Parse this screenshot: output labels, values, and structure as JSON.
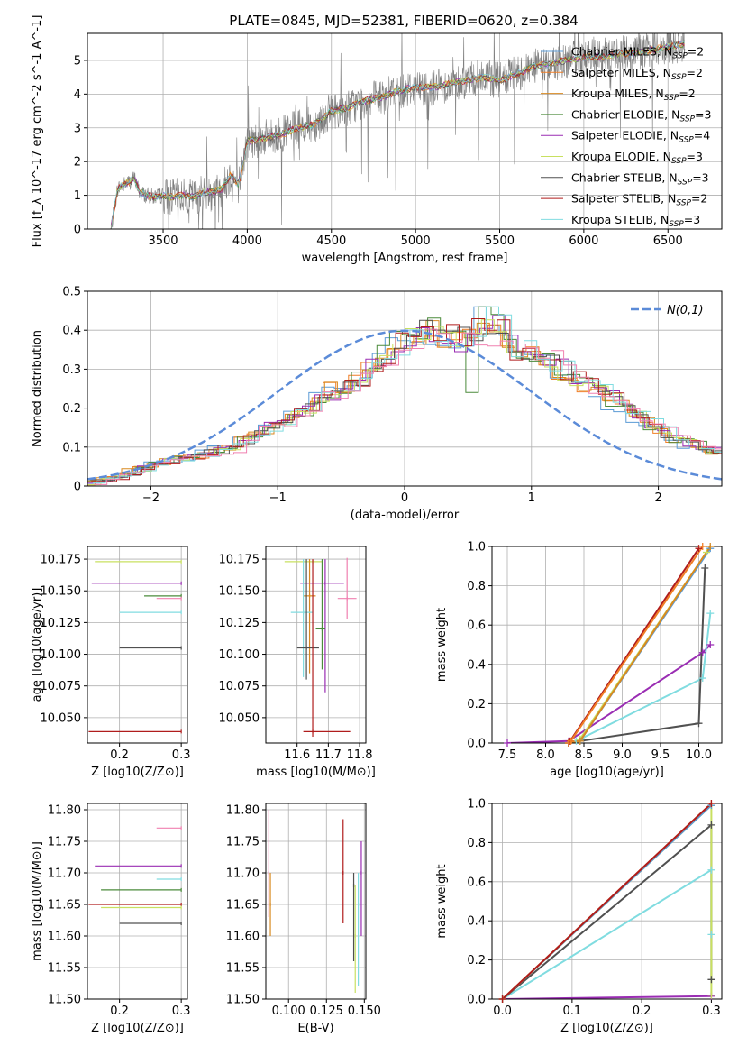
{
  "title": "PLATE=0845, MJD=52381, FIBERID=0620, z=0.384",
  "colors": {
    "Chabrier MILES": "#5b9bd5",
    "Salpeter MILES": "#f07e26",
    "Kroupa MILES": "#d98a20",
    "Chabrier ELODIE": "#4b8b3b",
    "Salpeter ELODIE": "#9a2db3",
    "Kroupa ELODIE": "#c8e060",
    "Chabrier STELIB": "#505050",
    "Salpeter STELIB": "#b01c1c",
    "Kroupa STELIB": "#80dce0",
    "Observed": "#808080",
    "Normal": "#5b8bd8",
    "Pink": "#f080b0"
  },
  "chart_data": [
    {
      "type": "line",
      "id": "spectrum",
      "xlabel": "wavelength [Angstrom, rest frame]",
      "ylabel": "Flux [f_λ 10^-17 erg cm^-2 s^-1 A^-1]",
      "xlim": [
        3050,
        6820
      ],
      "ylim": [
        0,
        5.8
      ],
      "xticks": [
        3500,
        4000,
        4500,
        5000,
        5500,
        6000,
        6500
      ],
      "yticks": [
        0,
        1,
        2,
        3,
        4,
        5
      ],
      "legend": "top-right",
      "legend_entries": [
        {
          "label": "Chabrier MILES, N_SSP=2"
        },
        {
          "label": "Salpeter MILES, N_SSP=2"
        },
        {
          "label": "Kroupa MILES, N_SSP=2"
        },
        {
          "label": "Chabrier ELODIE, N_SSP=3"
        },
        {
          "label": "Salpeter ELODIE, N_SSP=4"
        },
        {
          "label": "Kroupa ELODIE, N_SSP=3"
        },
        {
          "label": "Chabrier STELIB, N_SSP=3"
        },
        {
          "label": "Salpeter STELIB, N_SSP=2"
        },
        {
          "label": "Kroupa STELIB, N_SSP=3"
        }
      ],
      "model_points": {
        "x": [
          3190,
          3230,
          3260,
          3300,
          3330,
          3360,
          3400,
          3450,
          3500,
          3560,
          3620,
          3680,
          3750,
          3800,
          3850,
          3900,
          3950,
          4000,
          4100,
          4200,
          4300,
          4400,
          4500,
          4600,
          4700,
          4800,
          4900,
          5000,
          5100,
          5200,
          5300,
          5400,
          5500,
          5600,
          5700,
          5800,
          5900,
          6000,
          6100,
          6200,
          6300,
          6400,
          6500,
          6600
        ],
        "y": [
          0.0,
          1.2,
          1.3,
          1.4,
          1.5,
          1.1,
          1.0,
          0.95,
          1.0,
          0.95,
          1.0,
          0.95,
          1.1,
          1.1,
          1.2,
          1.6,
          1.3,
          2.6,
          2.7,
          2.8,
          3.0,
          3.1,
          3.5,
          3.6,
          3.8,
          3.9,
          4.1,
          4.2,
          4.2,
          4.3,
          4.4,
          4.5,
          4.4,
          4.6,
          4.8,
          4.9,
          5.0,
          5.1,
          5.1,
          5.2,
          5.2,
          5.3,
          5.4,
          5.5
        ]
      }
    },
    {
      "type": "bar",
      "id": "residuals",
      "xlabel": "(data-model)/error",
      "ylabel": "Normed distribution",
      "xlim": [
        -2.5,
        2.5
      ],
      "ylim": [
        0,
        0.5
      ],
      "xticks": [
        -2,
        -1,
        0,
        1,
        2
      ],
      "yticks": [
        0.0,
        0.1,
        0.2,
        0.3,
        0.4,
        0.5
      ],
      "legend": "top-right",
      "legend_label": "N(0,1)",
      "bin_edges_start": -2.5,
      "bin_width": 0.1,
      "base_hist": [
        0.01,
        0.018,
        0.025,
        0.035,
        0.045,
        0.055,
        0.06,
        0.07,
        0.075,
        0.085,
        0.09,
        0.1,
        0.12,
        0.14,
        0.15,
        0.16,
        0.18,
        0.2,
        0.22,
        0.24,
        0.26,
        0.28,
        0.3,
        0.33,
        0.36,
        0.38,
        0.4,
        0.4,
        0.38,
        0.38,
        0.39,
        0.39,
        0.41,
        0.36,
        0.35,
        0.34,
        0.33,
        0.3,
        0.28,
        0.26,
        0.24,
        0.22,
        0.2,
        0.18,
        0.16,
        0.14,
        0.12,
        0.11,
        0.1,
        0.09
      ]
    },
    {
      "type": "scatter",
      "id": "age-vs-Z",
      "xlabel": "Z [log10(Z/Z⊙)]",
      "ylabel": "age [log10(age/yr)]",
      "xlim": [
        0.148,
        0.31
      ],
      "ylim": [
        10.03,
        10.185
      ],
      "xticks": [
        0.2,
        0.3
      ],
      "xtick_labels": [
        "0.2",
        "0.3"
      ],
      "yticks": [
        10.05,
        10.075,
        10.1,
        10.125,
        10.15,
        10.175
      ],
      "ytick_labels": [
        "10.050",
        "10.075",
        "10.100",
        "10.125",
        "10.150",
        "10.175"
      ]
    },
    {
      "type": "scatter",
      "id": "age-vs-mass",
      "xlabel": "mass [log10(M/M⊙)]",
      "ylabel": "",
      "xlim": [
        11.5,
        11.82
      ],
      "ylim": [
        10.03,
        10.185
      ],
      "xticks": [
        11.6,
        11.7,
        11.8
      ],
      "xtick_labels": [
        "11.6",
        "11.7",
        "11.8"
      ],
      "yticks": [
        10.05,
        10.075,
        10.1,
        10.125,
        10.15,
        10.175
      ],
      "ytick_labels": [
        "10.050",
        "10.075",
        "10.100",
        "10.125",
        "10.150",
        "10.175"
      ]
    },
    {
      "type": "line",
      "id": "mass-weight-vs-age",
      "xlabel": "age [log10(age/yr)]",
      "ylabel": "mass weight",
      "xlim": [
        7.3,
        10.3
      ],
      "ylim": [
        0,
        1
      ],
      "xticks": [
        7.5,
        8.0,
        8.5,
        9.0,
        9.5,
        10.0
      ],
      "xtick_labels": [
        "7.5",
        "8.0",
        "8.5",
        "9.0",
        "9.5",
        "10.0"
      ],
      "yticks": [
        0,
        0.2,
        0.4,
        0.6,
        0.8,
        1.0
      ],
      "ytick_labels": [
        "0.0",
        "0.2",
        "0.4",
        "0.6",
        "0.8",
        "1.0"
      ],
      "series": [
        {
          "color": "Salpeter ELODIE",
          "x": [
            7.5,
            8.3,
            10.05,
            10.15
          ],
          "y": [
            0.0,
            0.01,
            0.46,
            0.5
          ]
        },
        {
          "color": "Kroupa STELIB",
          "x": [
            8.3,
            8.4,
            10.05,
            10.15
          ],
          "y": [
            0.0,
            0.01,
            0.33,
            0.66
          ]
        },
        {
          "color": "Chabrier STELIB",
          "x": [
            8.3,
            8.45,
            10.0,
            10.08
          ],
          "y": [
            0.0,
            0.01,
            0.1,
            0.89
          ]
        },
        {
          "color": "Kroupa ELODIE",
          "x": [
            8.3,
            8.45,
            10.1
          ],
          "y": [
            0.0,
            0.02,
            0.97
          ]
        },
        {
          "color": "Chabrier MILES",
          "x": [
            8.3,
            8.45,
            10.15
          ],
          "y": [
            0.0,
            0.01,
            0.99
          ]
        },
        {
          "color": "Kroupa MILES",
          "x": [
            8.3,
            8.45,
            10.15
          ],
          "y": [
            0.0,
            0.01,
            1.0
          ]
        },
        {
          "color": "Salpeter STELIB",
          "x": [
            8.3,
            8.32,
            10.0
          ],
          "y": [
            0.0,
            0.01,
            0.99
          ]
        },
        {
          "color": "Salpeter MILES",
          "x": [
            8.3,
            8.33,
            10.05
          ],
          "y": [
            0.0,
            0.01,
            1.0
          ]
        }
      ]
    },
    {
      "type": "scatter",
      "id": "mass-vs-Z",
      "xlabel": "Z [log10(Z/Z⊙)]",
      "ylabel": "mass [log10(M/M⊙)]",
      "xlim": [
        0.148,
        0.31
      ],
      "ylim": [
        11.5,
        11.81
      ],
      "xticks": [
        0.2,
        0.3
      ],
      "xtick_labels": [
        "0.2",
        "0.3"
      ],
      "yticks": [
        11.5,
        11.55,
        11.6,
        11.65,
        11.7,
        11.75,
        11.8
      ],
      "ytick_labels": [
        "11.50",
        "11.55",
        "11.60",
        "11.65",
        "11.70",
        "11.75",
        "11.80"
      ]
    },
    {
      "type": "scatter",
      "id": "mass-vs-ebv",
      "xlabel": "E(B-V)",
      "ylabel": "",
      "xlim": [
        0.085,
        0.151
      ],
      "ylim": [
        11.5,
        11.81
      ],
      "xticks": [
        0.1,
        0.125,
        0.15
      ],
      "xtick_labels": [
        "0.100",
        "0.125",
        "0.150"
      ],
      "yticks": [
        11.5,
        11.55,
        11.6,
        11.65,
        11.7,
        11.75,
        11.8
      ],
      "ytick_labels": [
        "11.50",
        "11.55",
        "11.60",
        "11.65",
        "11.70",
        "11.75",
        "11.80"
      ]
    },
    {
      "type": "line",
      "id": "mass-weight-vs-Z",
      "xlabel": "Z [log10(Z/Z⊙)]",
      "ylabel": "mass weight",
      "xlim": [
        -0.015,
        0.315
      ],
      "ylim": [
        0,
        1
      ],
      "xticks": [
        0.0,
        0.1,
        0.2,
        0.3
      ],
      "xtick_labels": [
        "0.0",
        "0.1",
        "0.2",
        "0.3"
      ],
      "yticks": [
        0,
        0.2,
        0.4,
        0.6,
        0.8,
        1.0
      ],
      "ytick_labels": [
        "0.0",
        "0.2",
        "0.4",
        "0.6",
        "0.8",
        "1.0"
      ],
      "series": [
        {
          "color": "Salpeter ELODIE",
          "x": [
            0.0,
            0.3
          ],
          "y": [
            0.0,
            0.015
          ]
        },
        {
          "color": "Kroupa STELIB",
          "x": [
            0.0,
            0.3,
            0.3
          ],
          "y": [
            0.0,
            0.66,
            0.33
          ]
        },
        {
          "color": "Chabrier STELIB",
          "x": [
            0.0,
            0.3,
            0.3
          ],
          "y": [
            0.0,
            0.89,
            0.1
          ]
        },
        {
          "color": "Kroupa ELODIE",
          "x": [
            0.0,
            0.3,
            0.3
          ],
          "y": [
            0.0,
            0.99,
            0.02
          ]
        },
        {
          "color": "Chabrier MILES",
          "x": [
            0.0,
            0.3
          ],
          "y": [
            0.0,
            0.99
          ]
        },
        {
          "color": "Kroupa MILES",
          "x": [
            0.0,
            0.3
          ],
          "y": [
            0.0,
            1.0
          ]
        },
        {
          "color": "Salpeter STELIB",
          "x": [
            0.0,
            0.3
          ],
          "y": [
            0.0,
            1.0
          ]
        }
      ]
    }
  ],
  "error_bars": {
    "age_Z": [
      {
        "c": "Kroupa ELODIE",
        "x": 0.3,
        "xerr": [
          0.16,
          0.3
        ],
        "y": 10.173
      },
      {
        "c": "Salpeter ELODIE",
        "x": 0.3,
        "xerr": [
          0.155,
          0.3
        ],
        "y": 10.156
      },
      {
        "c": "Chabrier ELODIE",
        "x": 0.3,
        "xerr": [
          0.24,
          0.3
        ],
        "y": 10.146
      },
      {
        "c": "Pink",
        "x": 0.3,
        "xerr": [
          0.26,
          0.3
        ],
        "y": 10.144
      },
      {
        "c": "Kroupa STELIB",
        "x": 0.3,
        "xerr": [
          0.2,
          0.3
        ],
        "y": 10.133
      },
      {
        "c": "Chabrier STELIB",
        "x": 0.3,
        "xerr": [
          0.2,
          0.3
        ],
        "y": 10.105
      },
      {
        "c": "Salpeter STELIB",
        "x": 0.3,
        "xerr": [
          0.15,
          0.3
        ],
        "y": 10.039
      }
    ],
    "age_mass": [
      {
        "c": "Kroupa ELODIE",
        "x": 11.65,
        "xerr": [
          11.56,
          11.68
        ],
        "y": 10.173
      },
      {
        "c": "Salpeter ELODIE",
        "x": 11.69,
        "xerr": [
          11.61,
          11.75
        ],
        "y": 10.156,
        "yerr": [
          10.07,
          10.175
        ]
      },
      {
        "c": "Pink",
        "x": 11.76,
        "xerr": [
          11.73,
          11.79
        ],
        "y": 10.144,
        "yerr": [
          10.128,
          10.176
        ]
      },
      {
        "c": "Kroupa MILES",
        "x": 11.64,
        "xerr": [
          11.62,
          11.66
        ],
        "y": 10.146,
        "yerr": [
          10.085,
          10.175
        ]
      },
      {
        "c": "Kroupa STELIB",
        "x": 11.62,
        "xerr": [
          11.58,
          11.65
        ],
        "y": 10.133,
        "yerr": [
          10.082,
          10.175
        ]
      },
      {
        "c": "Chabrier STELIB",
        "x": 11.63,
        "xerr": [
          11.6,
          11.67
        ],
        "y": 10.105,
        "yerr": [
          10.08,
          10.175
        ]
      },
      {
        "c": "Chabrier ELODIE",
        "x": 11.68,
        "xerr": [
          11.66,
          11.69
        ],
        "y": 10.12,
        "yerr": [
          10.088,
          10.175
        ]
      },
      {
        "c": "Salpeter STELIB",
        "x": 11.65,
        "xerr": [
          11.62,
          11.77
        ],
        "y": 10.039,
        "yerr": [
          10.035,
          10.175
        ]
      }
    ],
    "mass_Z": [
      {
        "c": "Pink",
        "x": 0.3,
        "xerr": [
          0.26,
          0.3
        ],
        "y": 11.771
      },
      {
        "c": "Salpeter ELODIE",
        "x": 0.3,
        "xerr": [
          0.16,
          0.3
        ],
        "y": 11.711
      },
      {
        "c": "Kroupa STELIB",
        "x": 0.3,
        "xerr": [
          0.26,
          0.3
        ],
        "y": 11.69
      },
      {
        "c": "Chabrier ELODIE",
        "x": 0.3,
        "xerr": [
          0.17,
          0.3
        ],
        "y": 11.673
      },
      {
        "c": "Salpeter STELIB",
        "x": 0.3,
        "xerr": [
          0.15,
          0.3
        ],
        "y": 11.65
      },
      {
        "c": "Kroupa ELODIE",
        "x": 0.3,
        "xerr": [
          0.17,
          0.3
        ],
        "y": 11.645
      },
      {
        "c": "Chabrier STELIB",
        "x": 0.3,
        "xerr": [
          0.2,
          0.3
        ],
        "y": 11.62
      }
    ],
    "mass_ebv": [
      {
        "c": "Pink",
        "x": 0.087,
        "y": 11.7,
        "yerr": [
          11.63,
          11.8
        ]
      },
      {
        "c": "Kroupa MILES",
        "x": 0.088,
        "y": 11.65,
        "yerr": [
          11.6,
          11.7
        ]
      },
      {
        "c": "Salpeter STELIB",
        "x": 0.136,
        "y": 11.7,
        "yerr": [
          11.62,
          11.785
        ]
      },
      {
        "c": "Chabrier STELIB",
        "x": 0.143,
        "y": 11.68,
        "yerr": [
          11.56,
          11.7
        ]
      },
      {
        "c": "Salpeter ELODIE",
        "x": 0.148,
        "y": 11.7,
        "yerr": [
          11.6,
          11.75
        ]
      },
      {
        "c": "Kroupa STELIB",
        "x": 0.146,
        "y": 11.65,
        "yerr": [
          11.52,
          11.7
        ]
      },
      {
        "c": "Kroupa ELODIE",
        "x": 0.144,
        "y": 11.6,
        "yerr": [
          11.51,
          11.68
        ]
      }
    ]
  }
}
